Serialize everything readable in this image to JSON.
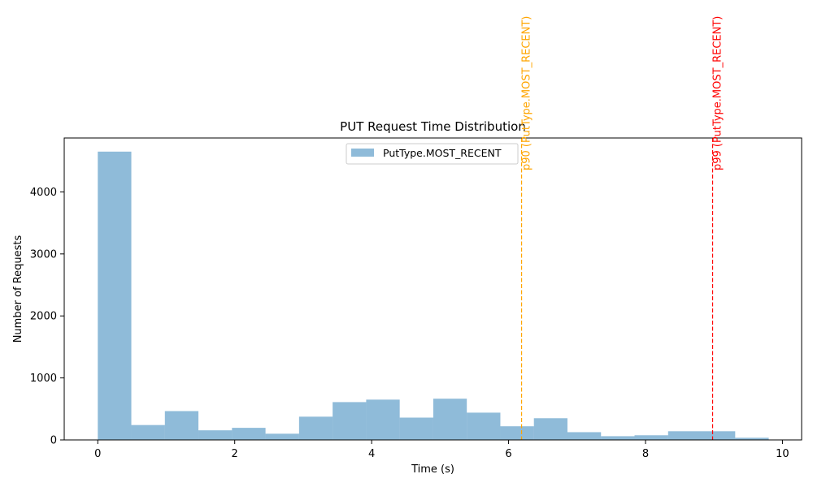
{
  "chart_data": {
    "type": "bar",
    "title": "PUT Request Time Distribution",
    "xlabel": "Time (s)",
    "ylabel": "Number of Requests",
    "xlim": [
      -0.49,
      10.28
    ],
    "ylim": [
      0,
      4870
    ],
    "xticks": [
      0,
      2,
      4,
      6,
      8,
      10
    ],
    "yticks": [
      0,
      1000,
      2000,
      3000,
      4000
    ],
    "grid": false,
    "legend": {
      "position": "top-center",
      "entries": [
        "PutType.MOST_RECENT"
      ]
    },
    "series": [
      {
        "name": "PutType.MOST_RECENT",
        "color": "#1f77b4",
        "opacity": 0.5,
        "bin_edges": [
          0,
          0.49,
          0.98,
          1.47,
          1.96,
          2.45,
          2.94,
          3.43,
          3.92,
          4.41,
          4.9,
          5.39,
          5.88,
          6.37,
          6.86,
          7.35,
          7.84,
          8.33,
          8.82,
          9.31,
          9.8
        ],
        "values": [
          4650,
          240,
          465,
          155,
          195,
          100,
          375,
          610,
          650,
          360,
          665,
          440,
          220,
          350,
          125,
          60,
          75,
          140,
          140,
          35
        ]
      }
    ],
    "annotations": [
      {
        "label": "p90 (PutType.MOST_RECENT)",
        "x": 6.19,
        "color": "#FFA500",
        "style": "dashed"
      },
      {
        "label": "p99 (PutType.MOST_RECENT)",
        "x": 8.98,
        "color": "#FF0000",
        "style": "dashed"
      }
    ]
  }
}
